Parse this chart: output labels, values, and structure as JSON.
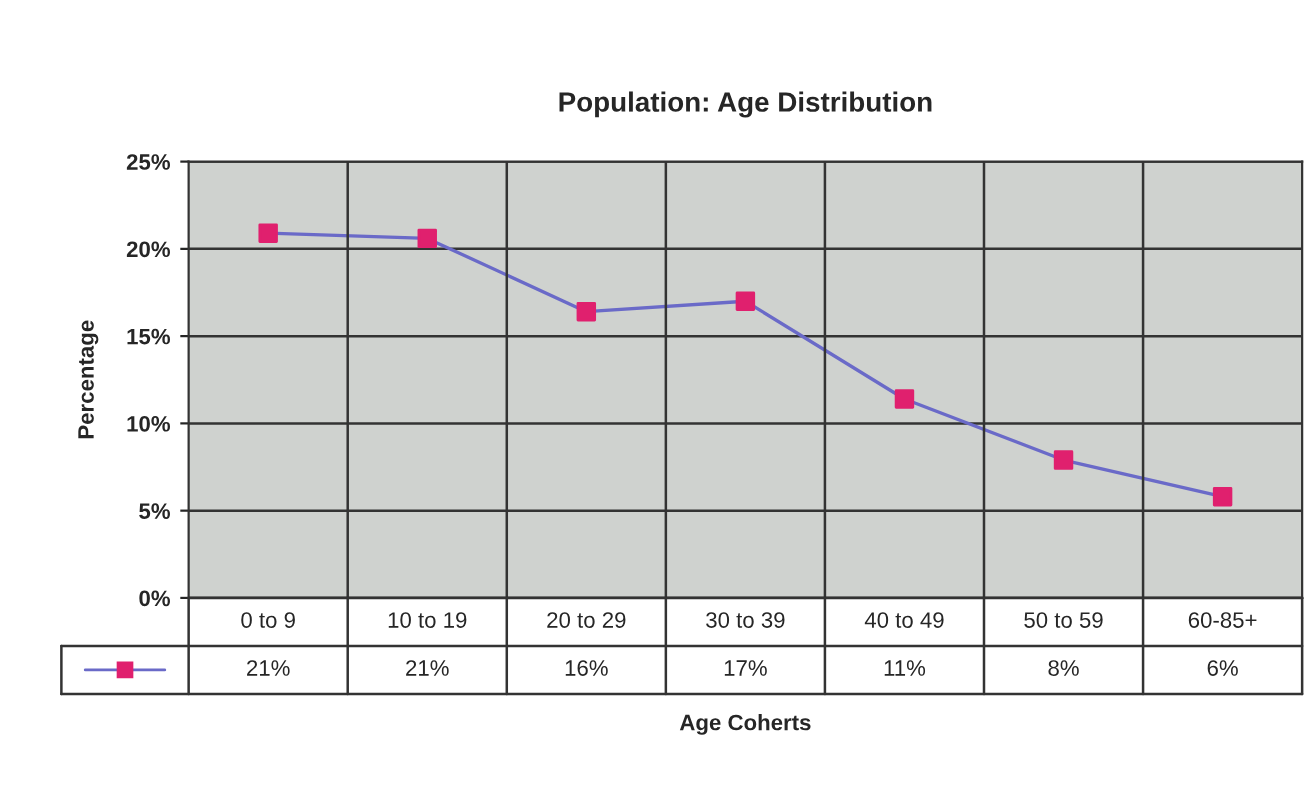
{
  "chart_data": {
    "type": "line",
    "title": "Population: Age Distribution",
    "xlabel": "Age Coherts",
    "ylabel": "Percentage",
    "categories": [
      "0 to 9",
      "10 to 19",
      "20 to 29",
      "30 to 39",
      "40 to 49",
      "50 to 59",
      "60-85+"
    ],
    "series": [
      {
        "color": "#6a6ac8",
        "colors": [
          "#e0206e",
          "#e0206e",
          "#e0206e",
          "#e0206e",
          "#e0206e",
          "#e0206e",
          "#e0206e"
        ],
        "values": [
          20.9,
          20.6,
          16.4,
          17.0,
          11.4,
          7.9,
          5.8
        ],
        "value_labels": [
          "21%",
          "21%",
          "16%",
          "17%",
          "11%",
          "8%",
          "6%"
        ]
      }
    ],
    "ylim": [
      0,
      25
    ],
    "yticks": [
      {
        "value": 0,
        "label": "0%"
      },
      {
        "value": 5,
        "label": "5%"
      },
      {
        "value": 10,
        "label": "10%"
      },
      {
        "value": 15,
        "label": "15%"
      },
      {
        "value": 20,
        "label": "20%"
      },
      {
        "value": 25,
        "label": "25%"
      }
    ],
    "grid": true,
    "marker": "square",
    "line_style": "solid"
  }
}
